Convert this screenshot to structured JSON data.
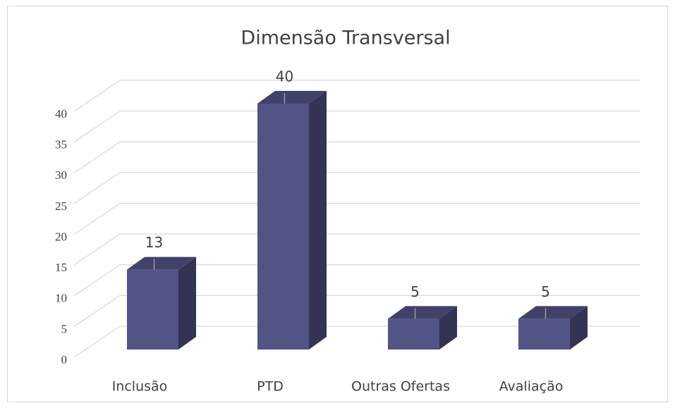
{
  "chart_data": {
    "type": "bar3d",
    "title": "Dimensão Transversal",
    "categories": [
      "Inclusão",
      "PTD",
      "Outras Ofertas",
      "Avaliação"
    ],
    "values": [
      13,
      40,
      5,
      5
    ],
    "color": "#525486",
    "ylim": [
      0,
      40
    ],
    "yticks": [
      0,
      5,
      10,
      15,
      20,
      25,
      30,
      35,
      40
    ],
    "grid": true
  }
}
